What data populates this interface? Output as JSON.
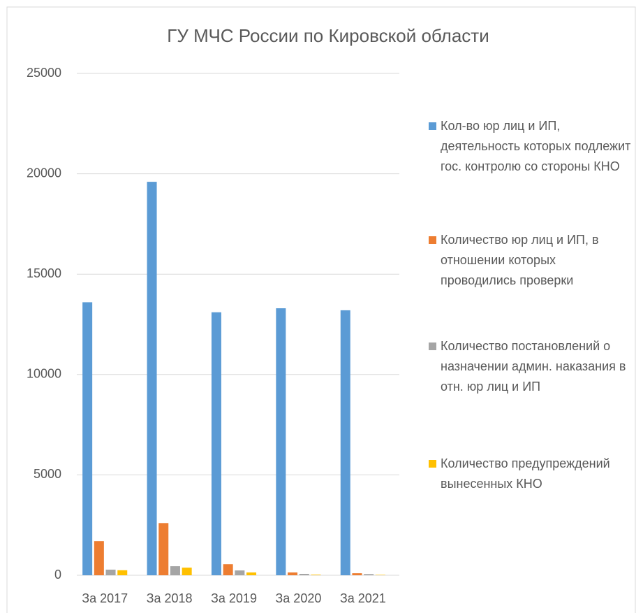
{
  "chart_data": {
    "type": "bar",
    "title": "ГУ МЧС России по Кировской области",
    "categories": [
      "За 2017",
      "За 2018",
      "За 2019",
      "За 2020",
      "За 2021"
    ],
    "series": [
      {
        "name": "Кол-во юр лиц и ИП, деятельность которых подлежит гос. контролю со стороны КНО",
        "color": "#5b9bd5",
        "values": [
          13600,
          19600,
          13100,
          13300,
          13200
        ]
      },
      {
        "name": "Количество юр лиц и ИП, в отношении которых проводились проверки",
        "color": "#ed7d31",
        "values": [
          1700,
          2600,
          550,
          140,
          100
        ]
      },
      {
        "name": "Количество постановлений о назначении админ. наказания в отн. юр лиц и ИП",
        "color": "#a5a5a5",
        "values": [
          280,
          450,
          240,
          70,
          60
        ]
      },
      {
        "name": "Количество предупреждений вынесенных КНО",
        "color": "#ffc000",
        "values": [
          250,
          380,
          140,
          30,
          20
        ]
      }
    ],
    "ylim": [
      0,
      25000
    ],
    "yticks": [
      0,
      5000,
      10000,
      15000,
      20000,
      25000
    ],
    "grid": true,
    "legend": "right"
  }
}
